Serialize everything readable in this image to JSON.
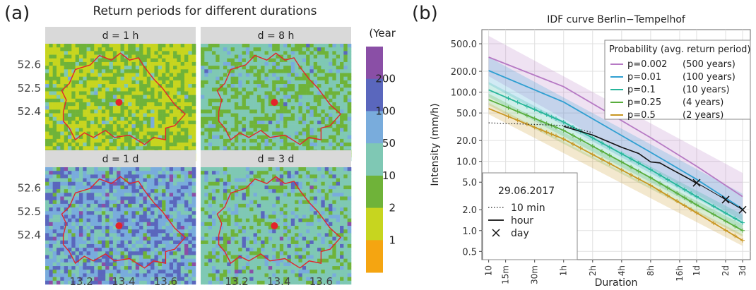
{
  "panel_a": {
    "label": "(a)",
    "title": "Return periods for different durations",
    "facets": [
      "d = 1 h",
      "d = 8 h",
      "d = 1 d",
      "d = 3 d"
    ],
    "x_ticks": [
      "13.2",
      "13.4",
      "13.6"
    ],
    "y_ticks": [
      "52.6",
      "52.5",
      "52.4"
    ],
    "legend_title": "(Years)",
    "legend_labels": [
      "200",
      "100",
      "50",
      "10",
      "2",
      "1"
    ],
    "legend_colors": [
      "#8a4fa6",
      "#5a67bd",
      "#79acdc",
      "#7fc8b4",
      "#6fb339",
      "#c7d51f",
      "#f5a511"
    ]
  },
  "panel_b": {
    "label": "(b)",
    "chart_data": {
      "type": "line",
      "title": "IDF curve Berlin−Tempelhof",
      "xlabel": "Duration",
      "ylabel": "Intensity (mm/h)",
      "x_scale": "log",
      "y_scale": "log",
      "x_tick_labels": [
        "10",
        "15m",
        "30m",
        "1h",
        "2h",
        "4h",
        "8h",
        "16h",
        "1d",
        "2d",
        "3d"
      ],
      "x_tick_minutes": [
        10,
        15,
        30,
        60,
        120,
        240,
        480,
        960,
        1440,
        2880,
        4320
      ],
      "y_tick_labels": [
        "0.5",
        "1.0",
        "2.0",
        "5.0",
        "10.0",
        "20.0",
        "50.0",
        "100.0",
        "200.0",
        "500.0"
      ],
      "y_ticks": [
        0.5,
        1,
        2,
        5,
        10,
        20,
        50,
        100,
        200,
        500
      ],
      "xlim_minutes": [
        8.5,
        5200
      ],
      "ylim": [
        0.38,
        800
      ],
      "legend_title": "Probability (avg. return period)",
      "series": [
        {
          "name": "p=0.002",
          "period": "(500 years)",
          "color": "#b679c4",
          "points": [
            [
              10,
              320
            ],
            [
              60,
              120
            ],
            [
              480,
              22
            ],
            [
              1440,
              8.5
            ],
            [
              4320,
              3.1
            ]
          ],
          "band": [
            [
              10,
              170,
              650
            ],
            [
              4320,
              1.4,
              6.8
            ]
          ]
        },
        {
          "name": "p=0.01",
          "period": "(100 years)",
          "color": "#2f9fd1",
          "points": [
            [
              10,
              205
            ],
            [
              60,
              72
            ],
            [
              480,
              13.5
            ],
            [
              1440,
              5.5
            ],
            [
              4320,
              2.05
            ]
          ],
          "band": [
            [
              10,
              130,
              320
            ],
            [
              4320,
              1.25,
              3.4
            ]
          ]
        },
        {
          "name": "p=0.1",
          "period": "(10 years)",
          "color": "#26b59a",
          "points": [
            [
              10,
              108
            ],
            [
              60,
              37
            ],
            [
              480,
              7.6
            ],
            [
              1440,
              3.1
            ],
            [
              4320,
              1.3
            ]
          ],
          "band": [
            [
              10,
              85,
              140
            ],
            [
              4320,
              1.0,
              1.7
            ]
          ]
        },
        {
          "name": "p=0.25",
          "period": "(4 years)",
          "color": "#58ad3c",
          "points": [
            [
              10,
              78
            ],
            [
              60,
              28
            ],
            [
              480,
              5.8
            ],
            [
              1440,
              2.35
            ],
            [
              4320,
              1.0
            ]
          ],
          "band": [
            [
              10,
              65,
              95
            ],
            [
              4320,
              0.82,
              1.22
            ]
          ]
        },
        {
          "name": "p=0.5",
          "period": "(2 years)",
          "color": "#c89621",
          "points": [
            [
              10,
              58
            ],
            [
              60,
              21
            ],
            [
              480,
              4.5
            ],
            [
              1440,
              1.8
            ],
            [
              4320,
              0.72
            ]
          ],
          "band": [
            [
              10,
              48,
              70
            ],
            [
              4320,
              0.6,
              0.88
            ]
          ]
        }
      ],
      "observed": {
        "legend_title": "29.06.2017",
        "ten_min": {
          "label": "10 min",
          "points": [
            [
              10,
              36
            ],
            [
              60,
              33
            ],
            [
              120,
              26
            ]
          ]
        },
        "hour": {
          "label": "hour",
          "points": [
            [
              60,
              32
            ],
            [
              120,
              24
            ],
            [
              240,
              16
            ],
            [
              360,
              13
            ],
            [
              480,
              9.8
            ],
            [
              600,
              9.5
            ],
            [
              720,
              8.2
            ],
            [
              1200,
              5.6
            ],
            [
              1440,
              4.8
            ]
          ]
        },
        "day": {
          "label": "day",
          "points": [
            [
              1440,
              4.9
            ],
            [
              2880,
              2.8
            ],
            [
              4320,
              2.0
            ]
          ]
        }
      }
    }
  }
}
